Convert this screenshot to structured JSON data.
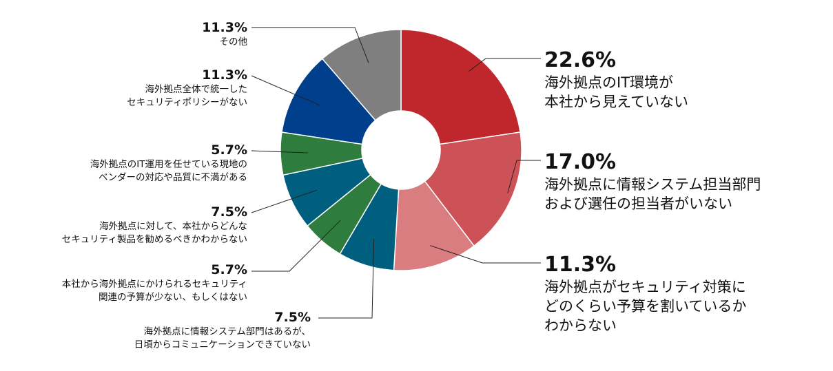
{
  "chart_data": {
    "type": "pie",
    "donut": true,
    "slices": [
      {
        "value": 22.6,
        "pct_label": "22.6%",
        "label": "海外拠点のIT環境が\n本社から見えていない",
        "color": "#c0272d"
      },
      {
        "value": 17.0,
        "pct_label": "17.0%",
        "label": "海外拠点に情報システム担当部門\nおよび選任の担当者がいない",
        "color": "#cd5257"
      },
      {
        "value": 11.3,
        "pct_label": "11.3%",
        "label": "海外拠点がセキュリティ対策に\nどのくらい予算を割いているか\nわからない",
        "color": "#da7d80"
      },
      {
        "value": 7.5,
        "pct_label": "7.5%",
        "label": "海外拠点に情報システム部門はあるが、\n日頃からコミュニケーションできていない",
        "color": "#005f7f"
      },
      {
        "value": 5.7,
        "pct_label": "5.7%",
        "label": "本社から海外拠点にかけられるセキュリティ\n関連の予算が少ない、もしくはない",
        "color": "#2e7d3e"
      },
      {
        "value": 7.5,
        "pct_label": "7.5%",
        "label": "海外拠点に対して、本社からどんな\nセキュリティ製品を勧めるべきかわからない",
        "color": "#005f7f"
      },
      {
        "value": 5.7,
        "pct_label": "5.7%",
        "label": "海外拠点のIT運用を任せている現地の\nベンダーの対応や品質に不満がある",
        "color": "#2e7d3e"
      },
      {
        "value": 11.3,
        "pct_label": "11.3%",
        "label": "海外拠点全体で統一した\nセキュリティポリシーがない",
        "color": "#003f8c"
      },
      {
        "value": 11.3,
        "pct_label": "11.3%",
        "label": "その他",
        "color": "#7f7f7f"
      }
    ]
  }
}
